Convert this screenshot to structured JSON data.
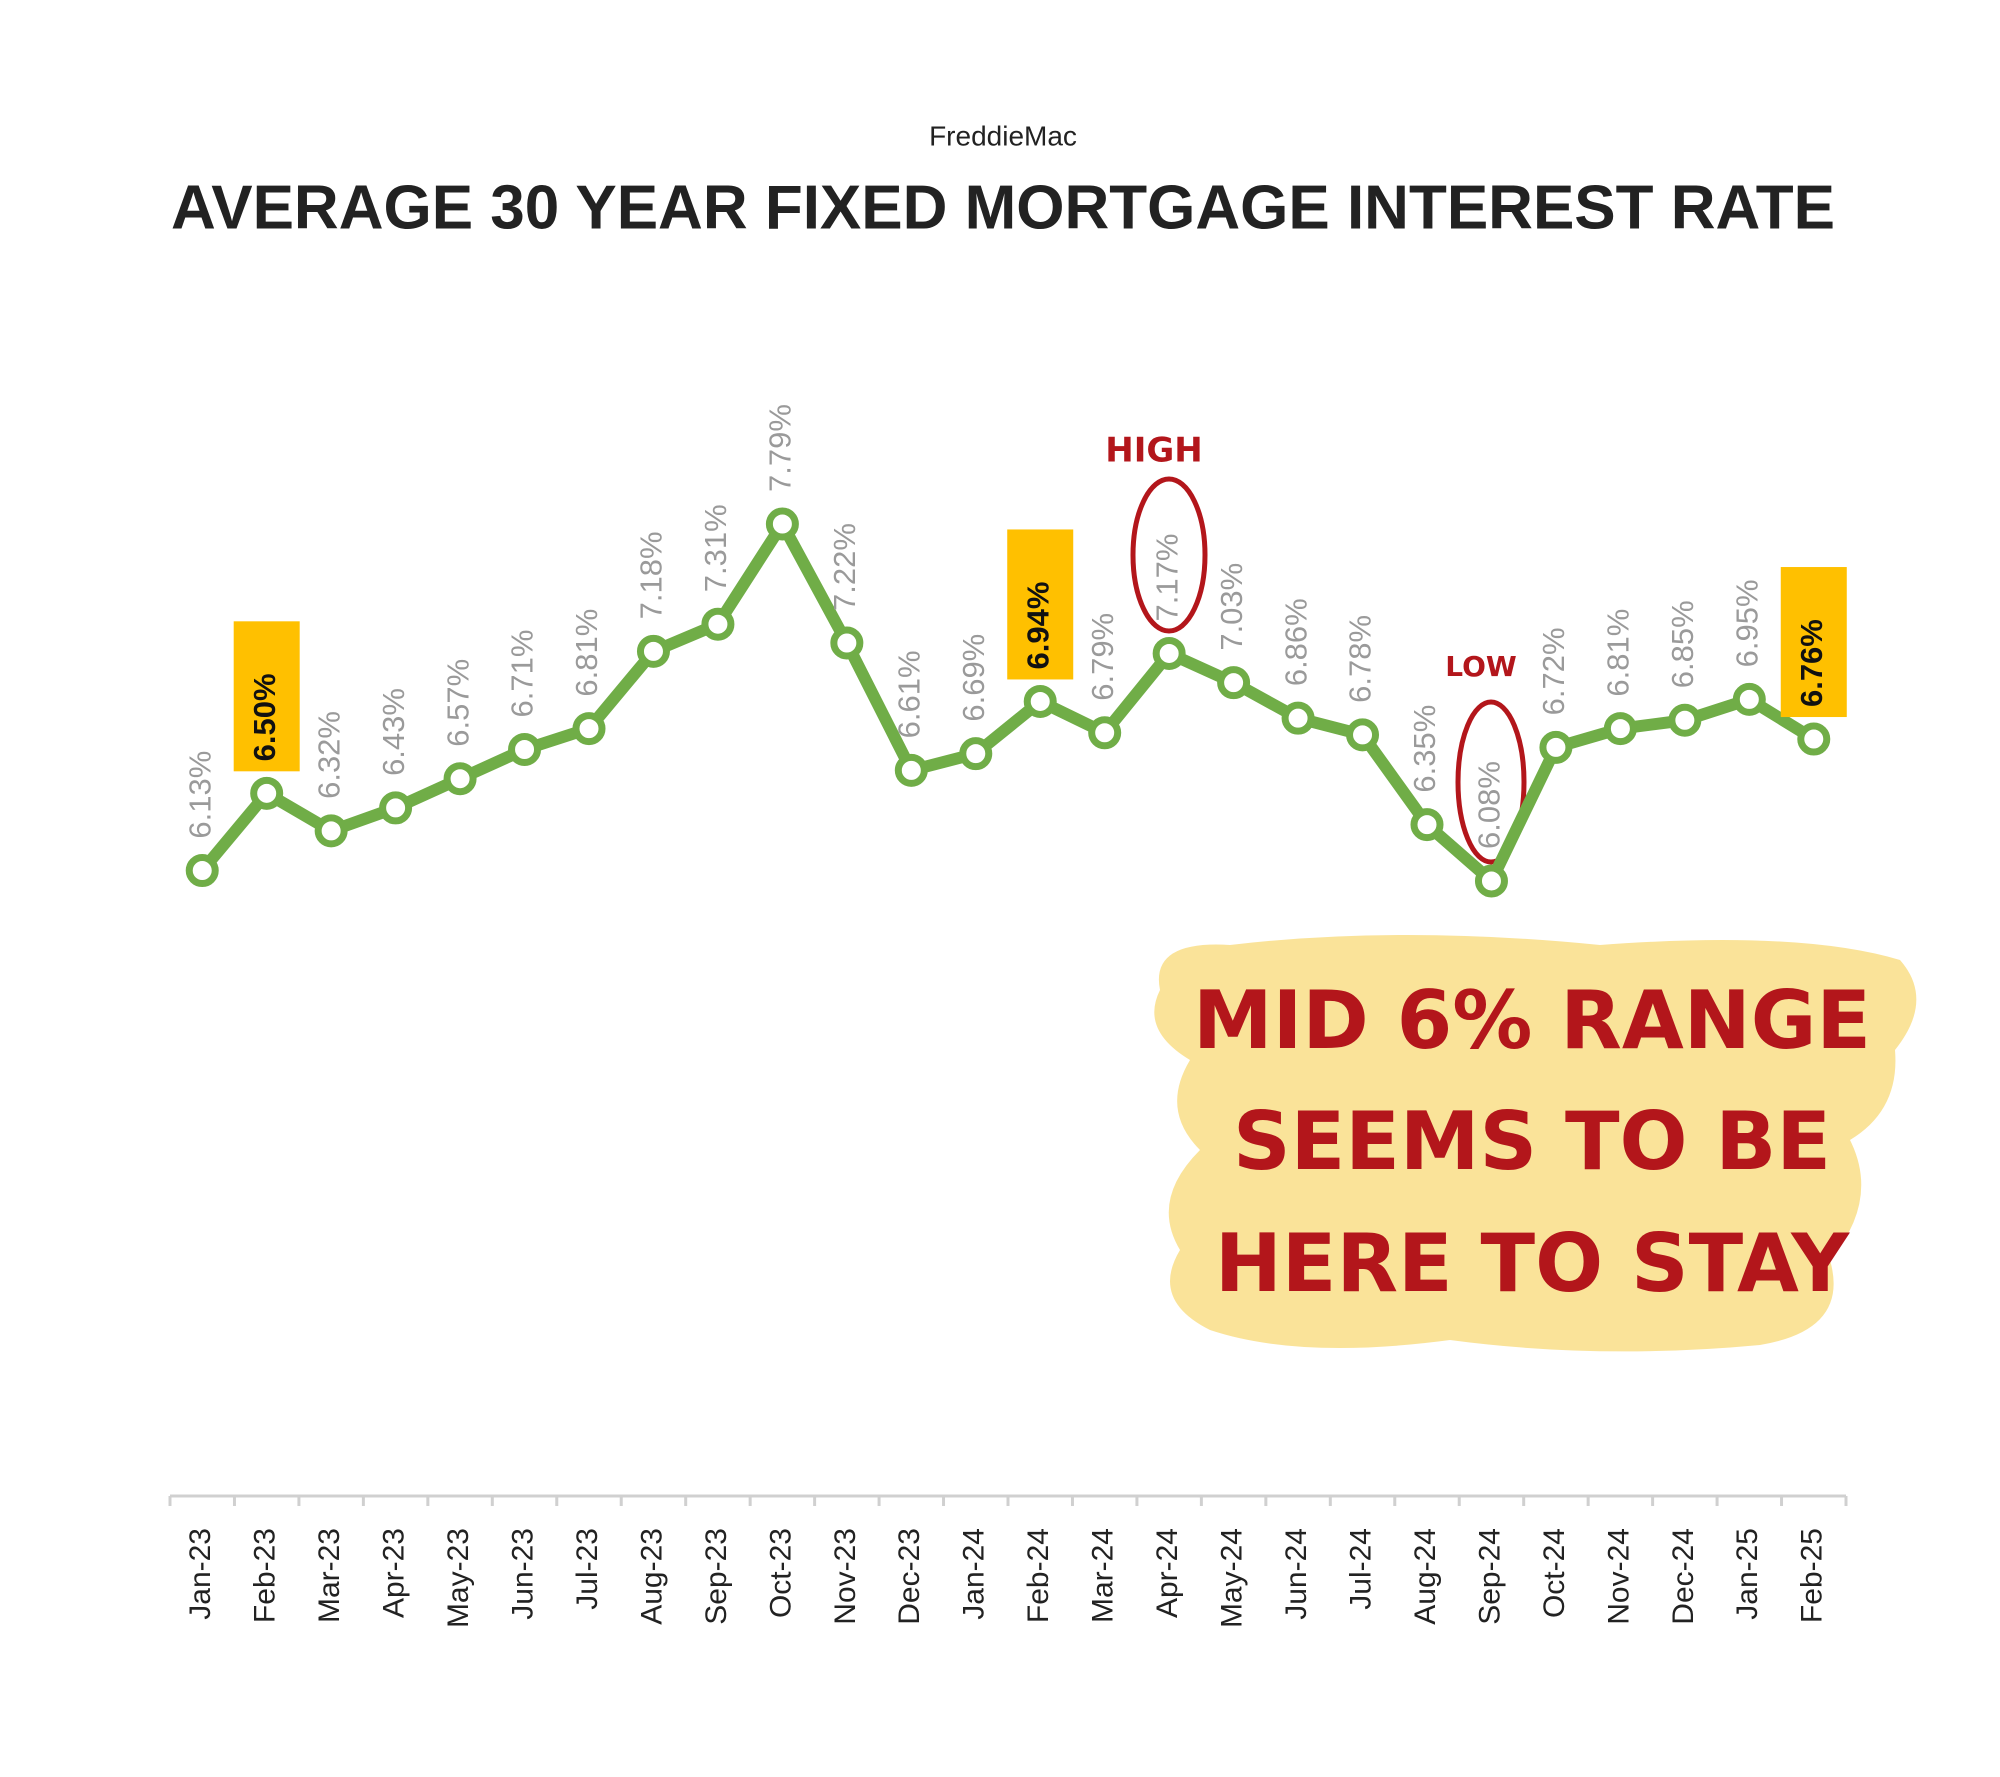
{
  "chart_data": {
    "type": "line",
    "subtitle": "FreddieMac",
    "title": "AVERAGE 30 YEAR FIXED MORTGAGE INTEREST RATE",
    "categories": [
      "Jan-23",
      "Feb-23",
      "Mar-23",
      "Apr-23",
      "May-23",
      "Jun-23",
      "Jul-23",
      "Aug-23",
      "Sep-23",
      "Oct-23",
      "Nov-23",
      "Dec-23",
      "Jan-24",
      "Feb-24",
      "Mar-24",
      "Apr-24",
      "May-24",
      "Jun-24",
      "Jul-24",
      "Aug-24",
      "Sep-24",
      "Oct-24",
      "Nov-24",
      "Dec-24",
      "Jan-25",
      "Feb-25"
    ],
    "values": [
      6.13,
      6.5,
      6.32,
      6.43,
      6.57,
      6.71,
      6.81,
      7.18,
      7.31,
      7.79,
      7.22,
      6.61,
      6.69,
      6.94,
      6.79,
      7.17,
      7.03,
      6.86,
      6.78,
      6.35,
      6.08,
      6.72,
      6.81,
      6.85,
      6.95,
      6.76
    ],
    "value_labels": [
      "6.13%",
      "6.50%",
      "6.32%",
      "6.43%",
      "6.57%",
      "6.71%",
      "6.81%",
      "7.18%",
      "7.31%",
      "7.79%",
      "7.22%",
      "6.61%",
      "6.69%",
      "6.94%",
      "6.79%",
      "7.17%",
      "7.03%",
      "6.86%",
      "6.78%",
      "6.35%",
      "6.08%",
      "6.72%",
      "6.81%",
      "6.85%",
      "6.95%",
      "6.76%"
    ],
    "highlighted": [
      1,
      13,
      25
    ],
    "color": "#70ad47",
    "highlight_color": "#ffc000",
    "annotations": {
      "high": "HIGH",
      "low": "LOW",
      "note": [
        "MID 6% RANGE",
        "SEEMS TO BE",
        "HERE TO STAY"
      ]
    }
  }
}
